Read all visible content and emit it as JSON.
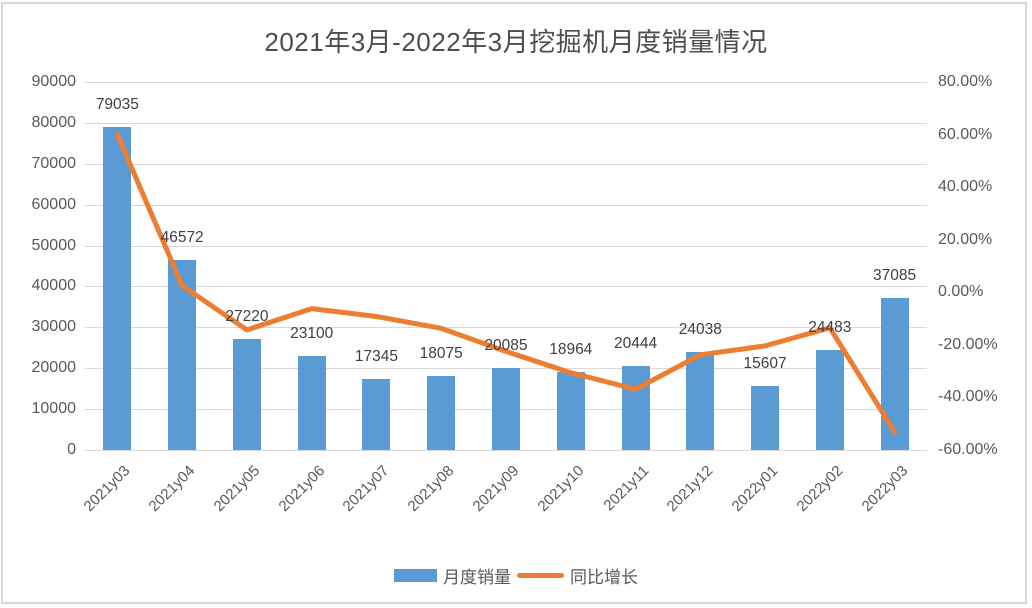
{
  "chart": {
    "title": "2021年3月-2022年3月挖掘机月度销量情况",
    "colors": {
      "bar": "#5b9bd5",
      "line": "#ed7d31",
      "grid": "#d9d9d9",
      "title_text": "#4d4d4d",
      "tick_text": "#595959",
      "data_label_text": "#404040"
    },
    "legend": [
      {
        "label": "月度销量",
        "type": "bar"
      },
      {
        "label": "同比增长",
        "type": "line"
      }
    ]
  },
  "chart_data": {
    "type": "bar",
    "combo": "bar+line",
    "title": "2021年3月-2022年3月挖掘机月度销量情况",
    "categories": [
      "2021y03",
      "2021y04",
      "2021y05",
      "2021y06",
      "2021y07",
      "2021y08",
      "2021y09",
      "2021y10",
      "2021y11",
      "2021y12",
      "2022y01",
      "2022y02",
      "2022y03"
    ],
    "series": [
      {
        "name": "月度销量",
        "type": "bar",
        "axis": "left",
        "values": [
          79035,
          46572,
          27220,
          23100,
          17345,
          18075,
          20085,
          18964,
          20444,
          24038,
          15607,
          24483,
          37085
        ],
        "data_labels": [
          "79035",
          "46572",
          "27220",
          "23100",
          "17345",
          "18075",
          "20085",
          "18964",
          "20444",
          "24038",
          "15607",
          "24483",
          "37085"
        ]
      },
      {
        "name": "同比增长",
        "type": "line",
        "axis": "right",
        "values_percent": [
          60.0,
          2.5,
          -14.3,
          -6.2,
          -9.2,
          -13.7,
          -22.5,
          -30.6,
          -36.9,
          -23.8,
          -20.4,
          -13.5,
          -53.1
        ]
      }
    ],
    "left_axis": {
      "min": 0,
      "max": 90000,
      "step": 10000,
      "tick_labels_top_to_bottom": [
        "90000",
        "80000",
        "70000",
        "60000",
        "50000",
        "40000",
        "30000",
        "20000",
        "10000",
        "0"
      ]
    },
    "right_axis": {
      "min": -60,
      "max": 80,
      "step": 20,
      "tick_labels_top_to_bottom": [
        "80.00%",
        "60.00%",
        "40.00%",
        "20.00%",
        "0.00%",
        "-20.00%",
        "-40.00%",
        "-60.00%"
      ]
    },
    "grid": true,
    "legend_position": "bottom",
    "xlabel": "",
    "ylabel_left": "",
    "ylabel_right": ""
  }
}
